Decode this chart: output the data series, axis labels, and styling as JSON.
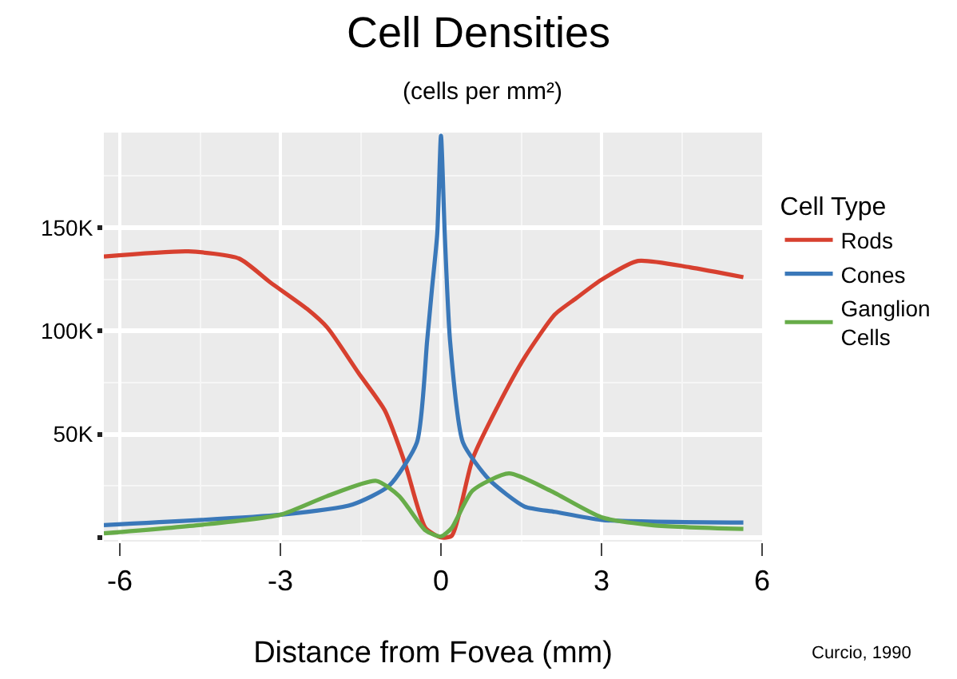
{
  "chart_data": {
    "type": "line",
    "title": "Cell Densities",
    "subtitle": "(cells per mm²)",
    "xlabel": "Distance from Fovea (mm)",
    "legend_title": "Cell Type",
    "xlim": [
      -6.3,
      6.0
    ],
    "xticks": [
      -6,
      -3,
      0,
      3,
      6
    ],
    "ylim": [
      -2000,
      196000
    ],
    "yticks": [
      {
        "value": 0,
        "label": null
      },
      {
        "value": 50000,
        "label": "50K"
      },
      {
        "value": 100000,
        "label": "100K"
      },
      {
        "value": 150000,
        "label": "150K"
      }
    ],
    "grid": true,
    "legend": "right",
    "marker": "none",
    "line_style": "solid",
    "annotations": [
      "Curcio, 1990"
    ],
    "series": [
      {
        "name": "Rods",
        "color": "#d7402f",
        "x": [
          -6.3,
          -4.72,
          -3.77,
          -3.19,
          -2.5,
          -2.12,
          -1.54,
          -1.05,
          -0.67,
          -0.29,
          0,
          0.2,
          0.59,
          1.07,
          1.56,
          2.13,
          2.52,
          3.0,
          3.68,
          4.65,
          5.65
        ],
        "values": [
          136000,
          138500,
          135000,
          123500,
          110600,
          101500,
          79600,
          61500,
          35700,
          4600,
          0,
          800,
          38000,
          64000,
          87000,
          108000,
          115700,
          124800,
          133900,
          130800,
          126000
        ]
      },
      {
        "name": "Cones",
        "color": "#3a78b9",
        "x": [
          -6.3,
          -3.0,
          -1.65,
          -0.97,
          -0.45,
          -0.26,
          -0.17,
          -0.07,
          0,
          0.07,
          0.17,
          0.41,
          0.9,
          1.56,
          2.13,
          3.0,
          5.65
        ],
        "values": [
          6000,
          11000,
          16000,
          25000,
          46000,
          95000,
          120000,
          147000,
          194500,
          147000,
          95000,
          46000,
          28000,
          15000,
          12400,
          8500,
          7200
        ]
      },
      {
        "name": "Ganglion Cells",
        "color": "#67ac49",
        "x": [
          -6.3,
          -4.53,
          -3.0,
          -2.13,
          -1.21,
          -0.78,
          -0.29,
          0,
          0.2,
          0.59,
          1.27,
          2.04,
          3.0,
          3.97,
          5.65
        ],
        "values": [
          2000,
          6000,
          11000,
          20000,
          27400,
          20000,
          3400,
          500,
          4600,
          22700,
          31000,
          22700,
          9800,
          5900,
          4100
        ]
      }
    ]
  }
}
